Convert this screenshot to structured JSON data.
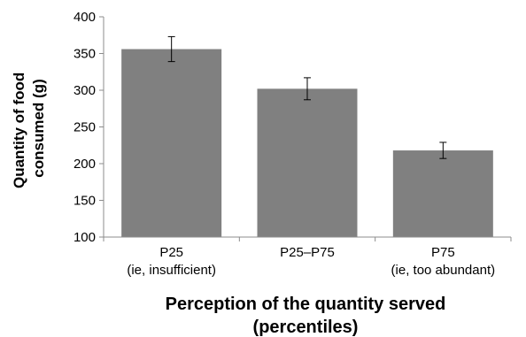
{
  "chart_data": {
    "type": "bar",
    "categories": [
      {
        "line1": "P25",
        "line2": "(ie, insufficient)"
      },
      {
        "line1": "P25–P75",
        "line2": ""
      },
      {
        "line1": "P75",
        "line2": "(ie, too abundant)"
      }
    ],
    "values": [
      356,
      302,
      218
    ],
    "error": [
      17,
      15,
      11
    ],
    "ylabel_line1": "Quantity of food",
    "ylabel_line2": "consumed (g)",
    "xlabel_line1": "Perception of the quantity served",
    "xlabel_line2": "(percentiles)",
    "ylim": [
      100,
      400
    ],
    "yticks": [
      100,
      150,
      200,
      250,
      300,
      350,
      400
    ],
    "grid": false,
    "legend": "none",
    "bar_color": "#808080",
    "axis_color": "#8c8c8c"
  }
}
